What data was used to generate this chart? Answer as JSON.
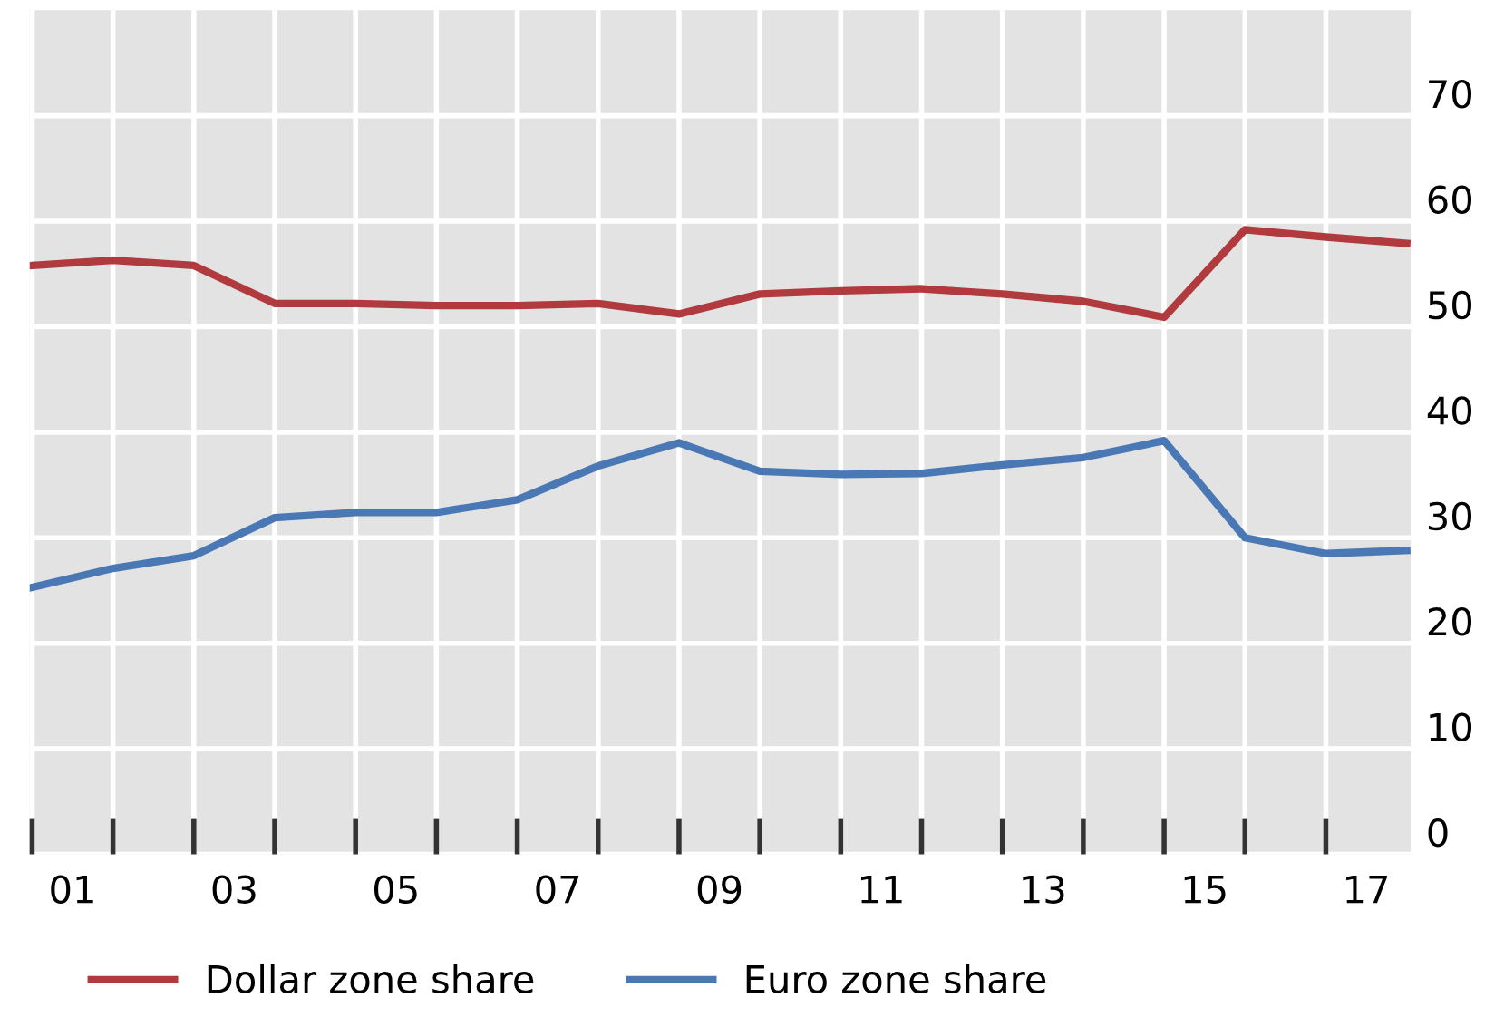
{
  "chart_data": {
    "type": "line",
    "x": [
      0.5,
      1.5,
      2.5,
      3.5,
      4.5,
      5.5,
      6.5,
      7.5,
      8.5,
      9.5,
      10.5,
      11.5,
      12.5,
      13.5,
      14.5,
      15.5,
      16.5,
      17.5
    ],
    "series": [
      {
        "name": "Dollar zone share",
        "color": "#b03a3e",
        "values": [
          55.8,
          56.3,
          55.8,
          52.2,
          52.2,
          52.0,
          52.0,
          52.2,
          51.2,
          53.1,
          53.4,
          53.6,
          53.1,
          52.4,
          50.9,
          59.2,
          58.5,
          57.9
        ]
      },
      {
        "name": "Euro zone share",
        "color": "#4a78b5",
        "values": [
          25.3,
          27.1,
          28.3,
          31.9,
          32.4,
          32.4,
          33.6,
          36.8,
          39.0,
          36.3,
          36.0,
          36.1,
          36.9,
          37.6,
          39.2,
          30.0,
          28.5,
          28.8
        ]
      }
    ],
    "xlim": [
      0.47,
      17.55
    ],
    "xticks": [
      {
        "value": 0.5,
        "label": null
      },
      {
        "value": 1,
        "label": "01"
      },
      {
        "value": 1.5,
        "label": null
      },
      {
        "value": 2.5,
        "label": null
      },
      {
        "value": 3,
        "label": "03"
      },
      {
        "value": 3.5,
        "label": null
      },
      {
        "value": 4.5,
        "label": null
      },
      {
        "value": 5,
        "label": "05"
      },
      {
        "value": 5.5,
        "label": null
      },
      {
        "value": 6.5,
        "label": null
      },
      {
        "value": 7,
        "label": "07"
      },
      {
        "value": 7.5,
        "label": null
      },
      {
        "value": 8.5,
        "label": null
      },
      {
        "value": 9,
        "label": "09"
      },
      {
        "value": 9.5,
        "label": null
      },
      {
        "value": 10.5,
        "label": null
      },
      {
        "value": 11,
        "label": "11"
      },
      {
        "value": 11.5,
        "label": null
      },
      {
        "value": 12.5,
        "label": null
      },
      {
        "value": 13,
        "label": "13"
      },
      {
        "value": 13.5,
        "label": null
      },
      {
        "value": 14.5,
        "label": null
      },
      {
        "value": 15,
        "label": "15"
      },
      {
        "value": 15.5,
        "label": null
      },
      {
        "value": 16.5,
        "label": null
      },
      {
        "value": 17,
        "label": "17"
      }
    ],
    "ylim": [
      0,
      80
    ],
    "yticks": [
      0,
      10,
      20,
      30,
      40,
      50,
      60,
      70
    ],
    "grid": true,
    "legend": "bottom",
    "marker": "none",
    "line_style": "solid"
  }
}
